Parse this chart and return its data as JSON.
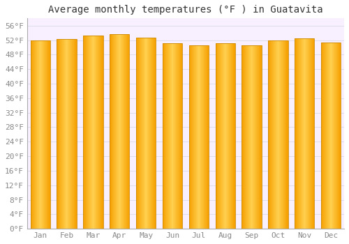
{
  "title": "Average monthly temperatures (°F ) in Guatavita",
  "months": [
    "Jan",
    "Feb",
    "Mar",
    "Apr",
    "May",
    "Jun",
    "Jul",
    "Aug",
    "Sep",
    "Oct",
    "Nov",
    "Dec"
  ],
  "values": [
    52.0,
    52.2,
    53.2,
    53.6,
    52.7,
    51.1,
    50.5,
    51.1,
    50.5,
    52.0,
    52.5,
    51.3
  ],
  "bar_color_center": "#FFCC44",
  "bar_color_edge": "#F5A000",
  "background_color": "#FFFFFF",
  "plot_bg_color": "#F8F0FF",
  "grid_color": "#DDDDEE",
  "title_fontsize": 10,
  "tick_fontsize": 8,
  "ylabel_ticks": [
    0,
    4,
    8,
    12,
    16,
    20,
    24,
    28,
    32,
    36,
    40,
    44,
    48,
    52,
    56
  ],
  "ylim": [
    0,
    58
  ],
  "title_font_family": "monospace",
  "tick_font_family": "monospace",
  "tick_color": "#888888"
}
